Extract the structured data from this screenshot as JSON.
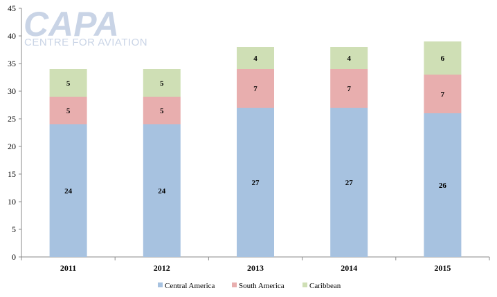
{
  "logo": {
    "name": "CAPA",
    "tagline": "CENTRE FOR AVIATION"
  },
  "chart_data": {
    "type": "bar",
    "stacked": true,
    "categories": [
      "2011",
      "2012",
      "2013",
      "2014",
      "2015"
    ],
    "series": [
      {
        "name": "Central America",
        "color": "#a7c2e0",
        "values": [
          24,
          24,
          27,
          27,
          26
        ]
      },
      {
        "name": "South America",
        "color": "#e8aeae",
        "values": [
          5,
          5,
          7,
          7,
          7
        ]
      },
      {
        "name": "Caribbean",
        "color": "#cfdfb5",
        "values": [
          5,
          5,
          4,
          4,
          6
        ]
      }
    ],
    "ylim": [
      0,
      45
    ],
    "yticks": [
      0,
      5,
      10,
      15,
      20,
      25,
      30,
      35,
      40,
      45
    ],
    "grid": false,
    "legend": "bottom",
    "data_labels": true
  }
}
